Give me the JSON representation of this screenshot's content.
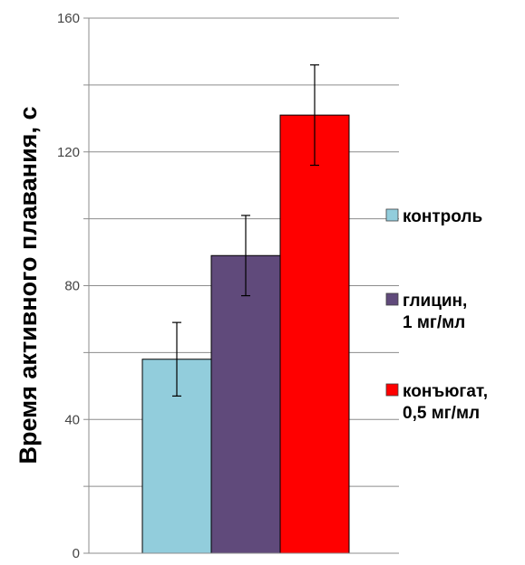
{
  "chart_data": {
    "type": "bar",
    "title": "",
    "xlabel": "",
    "ylabel": "Время активного плавания, с",
    "ylim": [
      0,
      160
    ],
    "yticks": [
      0,
      40,
      80,
      120,
      160
    ],
    "grid": true,
    "legend_position": "right",
    "series": [
      {
        "name": "контроль",
        "legend_lines": [
          "контроль"
        ],
        "value": 58,
        "error": 11,
        "color": "#92CDDC"
      },
      {
        "name": "глицин, 1 мг/мл",
        "legend_lines": [
          "глицин,",
          "1 мг/мл"
        ],
        "value": 89,
        "error": 12,
        "color": "#604A7B"
      },
      {
        "name": "конъюгат, 0,5 мг/мл",
        "legend_lines": [
          "конъюгат,",
          "0,5 мг/мл"
        ],
        "value": 131,
        "error": 15,
        "color": "#FF0000"
      }
    ]
  }
}
